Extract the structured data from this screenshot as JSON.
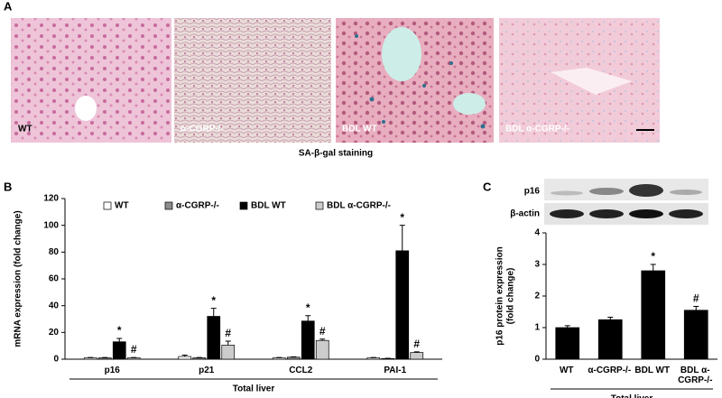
{
  "panels": [
    "A",
    "B",
    "C"
  ],
  "images": [
    {
      "label": "WT"
    },
    {
      "label": "α-CGRP-/-"
    },
    {
      "label": "BDL WT"
    },
    {
      "label": "BDL α-CGRP-/-"
    }
  ],
  "caption": "SA-β-gal staining",
  "blot": {
    "rows": [
      "p16",
      "β-actin"
    ]
  },
  "chart_data": [
    {
      "type": "bar",
      "ylabel": [
        "mRNA expression (fold change)"
      ],
      "xlabel": "Total liver",
      "categories": [
        "p16",
        "p21",
        "CCL2",
        "PAI-1"
      ],
      "series": [
        {
          "name": "WT",
          "color": "#ffffff",
          "values": [
            1,
            2,
            1,
            1
          ],
          "errors": [
            0.3,
            1,
            0.3,
            0.3
          ]
        },
        {
          "name": "α-CGRP-/-",
          "color": "#8c8c8c",
          "values": [
            1,
            1,
            1.5,
            0.5
          ],
          "errors": [
            0.3,
            0.3,
            0.3,
            0.2
          ]
        },
        {
          "name": "BDL WT",
          "color": "#000000",
          "values": [
            13,
            32,
            28.5,
            81
          ],
          "errors": [
            2.5,
            6,
            4,
            19
          ],
          "annotations": [
            "*",
            "*",
            "*",
            "*"
          ]
        },
        {
          "name": "BDL α-CGRP-/-",
          "color": "#cccccc",
          "values": [
            1,
            10.5,
            14,
            5
          ],
          "errors": [
            0.3,
            3,
            1,
            0.5
          ],
          "annotations": [
            "#",
            "#",
            "#",
            "#"
          ]
        }
      ],
      "ylim": [
        0,
        120
      ],
      "yticks": [
        0,
        20,
        40,
        60,
        80,
        100,
        120
      ]
    },
    {
      "type": "bar",
      "ylabel": [
        "p16 protein expression",
        "(fold change)"
      ],
      "xlabel": "Total liver",
      "categories": [
        "WT",
        "α-CGRP-/-",
        "BDL WT",
        "BDL α-CGRP-/-"
      ],
      "values": [
        1.0,
        1.25,
        2.8,
        1.55
      ],
      "errors": [
        0.06,
        0.08,
        0.2,
        0.12
      ],
      "annotations": [
        null,
        null,
        "*",
        "#"
      ],
      "color": "#000000",
      "ylim": [
        0,
        4
      ],
      "yticks": [
        0,
        1,
        2,
        3,
        4
      ]
    }
  ]
}
